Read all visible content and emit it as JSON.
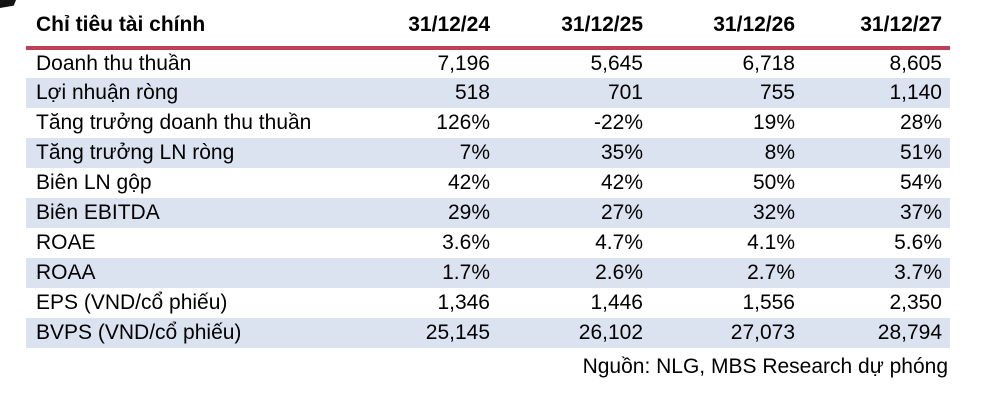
{
  "table": {
    "header": {
      "label": "Chỉ tiêu tài chính",
      "dates": [
        "31/12/24",
        "31/12/25",
        "31/12/26",
        "31/12/27"
      ]
    },
    "rows": [
      {
        "label": "Doanh thu thuần",
        "values": [
          "7,196",
          "5,645",
          "6,718",
          "8,605"
        ]
      },
      {
        "label": "Lợi nhuận ròng",
        "values": [
          "518",
          "701",
          "755",
          "1,140"
        ]
      },
      {
        "label": "Tăng trưởng doanh thu thuần",
        "values": [
          "126%",
          "-22%",
          "19%",
          "28%"
        ]
      },
      {
        "label": "Tăng trưởng LN ròng",
        "values": [
          "7%",
          "35%",
          "8%",
          "51%"
        ]
      },
      {
        "label": "Biên LN gộp",
        "values": [
          "42%",
          "42%",
          "50%",
          "54%"
        ]
      },
      {
        "label": "Biên EBITDA",
        "values": [
          "29%",
          "27%",
          "32%",
          "37%"
        ]
      },
      {
        "label": "ROAE",
        "values": [
          "3.6%",
          "4.7%",
          "4.1%",
          "5.6%"
        ]
      },
      {
        "label": "ROAA",
        "values": [
          "1.7%",
          "2.6%",
          "2.7%",
          "3.7%"
        ]
      },
      {
        "label": "EPS (VND/cổ phiếu)",
        "values": [
          "1,346",
          "1,446",
          "1,556",
          "2,350"
        ]
      },
      {
        "label": "BVPS (VND/cổ phiếu)",
        "values": [
          "25,145",
          "26,102",
          "27,073",
          "28,794"
        ]
      }
    ]
  },
  "footer": {
    "source_note": "Nguồn: NLG, MBS Research dự phóng"
  },
  "colors": {
    "stripe": "#dbe3f1",
    "header_rule": "#bf4057",
    "text": "#000000",
    "page_bg": "#ffffff"
  }
}
